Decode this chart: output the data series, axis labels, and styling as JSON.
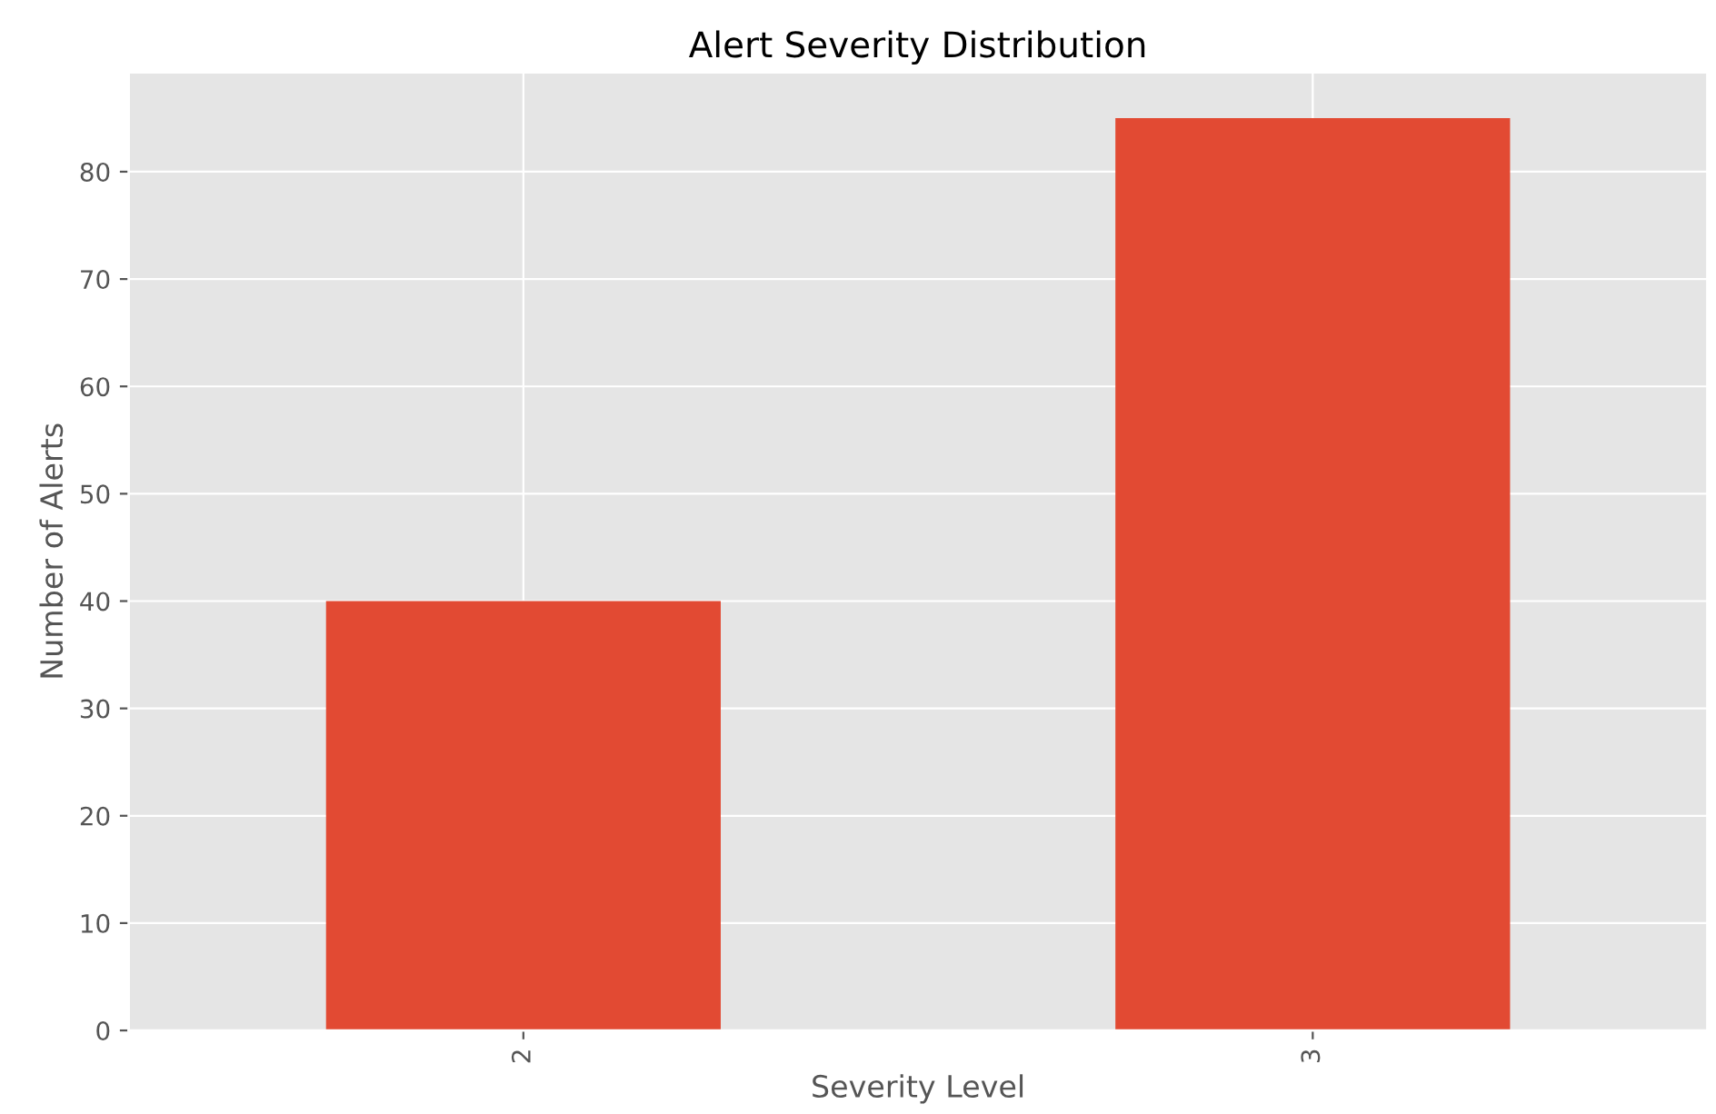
{
  "chart_data": {
    "type": "bar",
    "title": "Alert Severity Distribution",
    "xlabel": "Severity Level",
    "ylabel": "Number of Alerts",
    "categories": [
      "2",
      "3"
    ],
    "values": [
      40,
      85
    ],
    "color": "#e24a33",
    "ylim": [
      0,
      89.25
    ],
    "yticks": [
      0,
      10,
      20,
      30,
      40,
      50,
      60,
      70,
      80
    ],
    "grid": true
  }
}
